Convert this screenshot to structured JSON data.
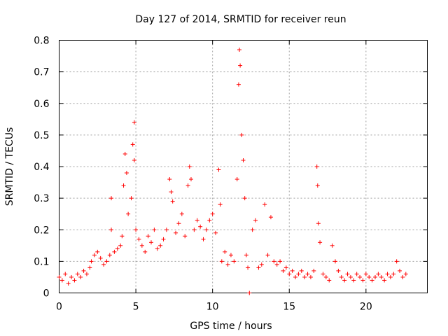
{
  "chart_data": {
    "type": "scatter",
    "title": "Day 127 of 2014, SRMTID for receiver reun",
    "xlabel": "GPS time / hours",
    "ylabel": "SRMTID / TECUs",
    "xlim": [
      0,
      24
    ],
    "ylim": [
      0,
      0.8
    ],
    "xticks": [
      0,
      5,
      10,
      15,
      20
    ],
    "yticks": [
      0,
      0.1,
      0.2,
      0.3,
      0.4,
      0.5,
      0.6,
      0.7,
      0.8
    ],
    "xtick_labels": [
      "0",
      "5",
      "10",
      "15",
      "20"
    ],
    "ytick_labels": [
      "0",
      "0.1",
      "0.2",
      "0.3",
      "0.4",
      "0.5",
      "0.6",
      "0.7",
      "0.8"
    ],
    "grid": true,
    "marker": "plus",
    "marker_color": "#ff0000",
    "series": [
      {
        "name": "SRMTID",
        "points": [
          [
            0.0,
            0.05
          ],
          [
            0.2,
            0.04
          ],
          [
            0.4,
            0.06
          ],
          [
            0.6,
            0.03
          ],
          [
            0.8,
            0.05
          ],
          [
            1.0,
            0.04
          ],
          [
            1.2,
            0.06
          ],
          [
            1.4,
            0.05
          ],
          [
            1.6,
            0.07
          ],
          [
            1.8,
            0.06
          ],
          [
            2.0,
            0.08
          ],
          [
            2.1,
            0.1
          ],
          [
            2.3,
            0.12
          ],
          [
            2.5,
            0.13
          ],
          [
            2.7,
            0.11
          ],
          [
            2.9,
            0.09
          ],
          [
            3.1,
            0.1
          ],
          [
            3.3,
            0.12
          ],
          [
            3.4,
            0.2
          ],
          [
            3.4,
            0.3
          ],
          [
            3.6,
            0.13
          ],
          [
            3.8,
            0.14
          ],
          [
            4.0,
            0.15
          ],
          [
            4.1,
            0.18
          ],
          [
            4.2,
            0.34
          ],
          [
            4.3,
            0.44
          ],
          [
            4.4,
            0.38
          ],
          [
            4.5,
            0.25
          ],
          [
            4.7,
            0.3
          ],
          [
            4.8,
            0.47
          ],
          [
            4.9,
            0.54
          ],
          [
            4.9,
            0.42
          ],
          [
            5.0,
            0.2
          ],
          [
            5.2,
            0.17
          ],
          [
            5.4,
            0.15
          ],
          [
            5.6,
            0.13
          ],
          [
            5.8,
            0.18
          ],
          [
            6.0,
            0.16
          ],
          [
            6.2,
            0.2
          ],
          [
            6.4,
            0.14
          ],
          [
            6.6,
            0.15
          ],
          [
            6.8,
            0.17
          ],
          [
            7.0,
            0.2
          ],
          [
            7.2,
            0.36
          ],
          [
            7.3,
            0.32
          ],
          [
            7.4,
            0.29
          ],
          [
            7.6,
            0.19
          ],
          [
            7.8,
            0.22
          ],
          [
            8.0,
            0.25
          ],
          [
            8.2,
            0.18
          ],
          [
            8.4,
            0.34
          ],
          [
            8.5,
            0.4
          ],
          [
            8.6,
            0.36
          ],
          [
            8.8,
            0.2
          ],
          [
            9.0,
            0.23
          ],
          [
            9.2,
            0.21
          ],
          [
            9.4,
            0.17
          ],
          [
            9.6,
            0.2
          ],
          [
            9.8,
            0.23
          ],
          [
            10.0,
            0.25
          ],
          [
            10.2,
            0.19
          ],
          [
            10.4,
            0.39
          ],
          [
            10.5,
            0.28
          ],
          [
            10.6,
            0.1
          ],
          [
            10.8,
            0.13
          ],
          [
            11.0,
            0.09
          ],
          [
            11.2,
            0.12
          ],
          [
            11.4,
            0.1
          ],
          [
            11.6,
            0.36
          ],
          [
            11.7,
            0.66
          ],
          [
            11.75,
            0.77
          ],
          [
            11.8,
            0.72
          ],
          [
            11.9,
            0.5
          ],
          [
            12.0,
            0.42
          ],
          [
            12.1,
            0.3
          ],
          [
            12.2,
            0.12
          ],
          [
            12.3,
            0.08
          ],
          [
            12.4,
            0.0
          ],
          [
            12.6,
            0.2
          ],
          [
            12.8,
            0.23
          ],
          [
            13.0,
            0.08
          ],
          [
            13.2,
            0.09
          ],
          [
            13.4,
            0.28
          ],
          [
            13.6,
            0.12
          ],
          [
            13.8,
            0.24
          ],
          [
            14.0,
            0.1
          ],
          [
            14.2,
            0.09
          ],
          [
            14.4,
            0.1
          ],
          [
            14.6,
            0.07
          ],
          [
            14.8,
            0.08
          ],
          [
            15.0,
            0.06
          ],
          [
            15.2,
            0.07
          ],
          [
            15.4,
            0.05
          ],
          [
            15.6,
            0.06
          ],
          [
            15.8,
            0.07
          ],
          [
            16.0,
            0.05
          ],
          [
            16.2,
            0.06
          ],
          [
            16.4,
            0.05
          ],
          [
            16.6,
            0.07
          ],
          [
            16.8,
            0.4
          ],
          [
            16.85,
            0.34
          ],
          [
            16.9,
            0.22
          ],
          [
            17.0,
            0.16
          ],
          [
            17.2,
            0.06
          ],
          [
            17.4,
            0.05
          ],
          [
            17.6,
            0.04
          ],
          [
            17.8,
            0.15
          ],
          [
            18.0,
            0.1
          ],
          [
            18.2,
            0.07
          ],
          [
            18.4,
            0.05
          ],
          [
            18.6,
            0.04
          ],
          [
            18.8,
            0.06
          ],
          [
            19.0,
            0.05
          ],
          [
            19.2,
            0.04
          ],
          [
            19.4,
            0.06
          ],
          [
            19.6,
            0.05
          ],
          [
            19.8,
            0.04
          ],
          [
            20.0,
            0.06
          ],
          [
            20.2,
            0.05
          ],
          [
            20.4,
            0.04
          ],
          [
            20.6,
            0.05
          ],
          [
            20.8,
            0.06
          ],
          [
            21.0,
            0.05
          ],
          [
            21.2,
            0.04
          ],
          [
            21.4,
            0.06
          ],
          [
            21.6,
            0.05
          ],
          [
            21.8,
            0.06
          ],
          [
            22.0,
            0.1
          ],
          [
            22.2,
            0.07
          ],
          [
            22.4,
            0.05
          ],
          [
            22.6,
            0.06
          ]
        ]
      }
    ]
  }
}
